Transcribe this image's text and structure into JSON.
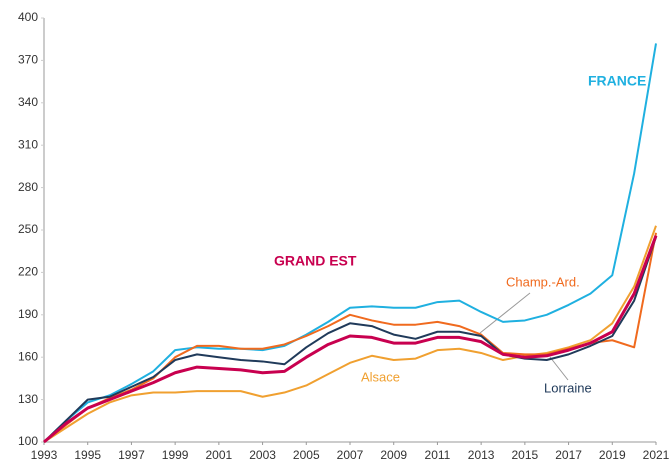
{
  "chart_data": {
    "type": "line",
    "x": [
      1993,
      1994,
      1995,
      1996,
      1997,
      1998,
      1999,
      2000,
      2001,
      2002,
      2003,
      2004,
      2005,
      2006,
      2007,
      2008,
      2009,
      2010,
      2011,
      2012,
      2013,
      2014,
      2015,
      2016,
      2017,
      2018,
      2019,
      2020,
      2021
    ],
    "xlim": [
      1993,
      2021
    ],
    "xticks": [
      1993,
      1995,
      1997,
      1999,
      2001,
      2003,
      2005,
      2007,
      2009,
      2011,
      2013,
      2015,
      2017,
      2019,
      2021
    ],
    "ylim": [
      100,
      400
    ],
    "yticks": [
      100,
      130,
      160,
      190,
      220,
      250,
      280,
      310,
      340,
      370,
      400
    ],
    "grid": false,
    "series": [
      {
        "name": "FRANCE",
        "color": "#1fb0e0",
        "values": [
          100,
          115,
          128,
          133,
          141,
          150,
          165,
          167,
          166,
          166,
          165,
          168,
          176,
          185,
          195,
          196,
          195,
          195,
          199,
          200,
          192,
          185,
          186,
          190,
          197,
          205,
          218,
          290,
          382
        ]
      },
      {
        "name": "Alsace",
        "color": "#f0a030",
        "values": [
          100,
          110,
          120,
          128,
          133,
          135,
          135,
          136,
          136,
          136,
          132,
          135,
          140,
          148,
          156,
          161,
          158,
          159,
          165,
          166,
          163,
          158,
          161,
          163,
          167,
          172,
          184,
          210,
          253
        ]
      },
      {
        "name": "Champ.-Ard.",
        "color": "#f06a1e",
        "values": [
          100,
          112,
          124,
          131,
          137,
          145,
          160,
          168,
          168,
          166,
          166,
          169,
          175,
          182,
          190,
          186,
          183,
          183,
          185,
          182,
          176,
          163,
          162,
          162,
          166,
          170,
          172,
          167,
          248
        ]
      },
      {
        "name": "Lorraine",
        "color": "#203a5a",
        "values": [
          100,
          115,
          130,
          132,
          139,
          146,
          158,
          162,
          160,
          158,
          157,
          155,
          167,
          177,
          184,
          182,
          176,
          173,
          178,
          178,
          175,
          162,
          159,
          158,
          162,
          168,
          175,
          200,
          245
        ]
      },
      {
        "name": "GRAND EST",
        "color": "#c8004f",
        "values": [
          100,
          113,
          124,
          130,
          136,
          142,
          149,
          153,
          152,
          151,
          149,
          150,
          160,
          169,
          175,
          174,
          170,
          170,
          174,
          174,
          171,
          162,
          160,
          161,
          165,
          170,
          178,
          205,
          246
        ]
      }
    ]
  }
}
